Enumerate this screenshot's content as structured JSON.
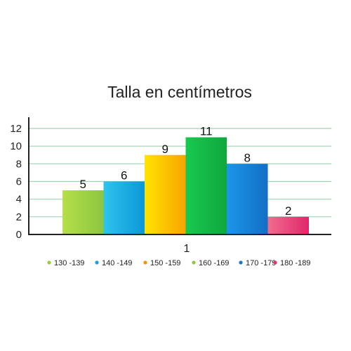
{
  "chart_data": {
    "type": "bar",
    "title": "Talla en centímetros",
    "categories": [
      "1"
    ],
    "series": [
      {
        "name": "130 -139",
        "value": 5,
        "color": "#9acd32",
        "gradient": [
          "#b5df4a",
          "#8cc63f"
        ]
      },
      {
        "name": "140 -149",
        "value": 6,
        "color": "#14a0dc",
        "gradient": [
          "#2ec4ee",
          "#0c97d6"
        ]
      },
      {
        "name": "150 -159",
        "value": 9,
        "color": "#f29600",
        "gradient": [
          "#ffe400",
          "#f7a400"
        ]
      },
      {
        "name": "160 -169",
        "value": 11,
        "color": "#8dc63f",
        "gradient": [
          "#17c94f",
          "#10a73c"
        ]
      },
      {
        "name": "170 -179",
        "value": 8,
        "color": "#1777c8",
        "gradient": [
          "#1b96e8",
          "#136fc4"
        ]
      },
      {
        "name": "180 -189",
        "value": 2,
        "color": "#e5316f",
        "gradient": [
          "#f06c8f",
          "#e0276a"
        ]
      }
    ],
    "ylim": [
      0,
      12
    ],
    "yticks": [
      "0",
      "2",
      "4",
      "6",
      "8",
      "10",
      "12"
    ],
    "grid": true,
    "gridColor": "#9fd4b1",
    "legend": "bottom"
  }
}
